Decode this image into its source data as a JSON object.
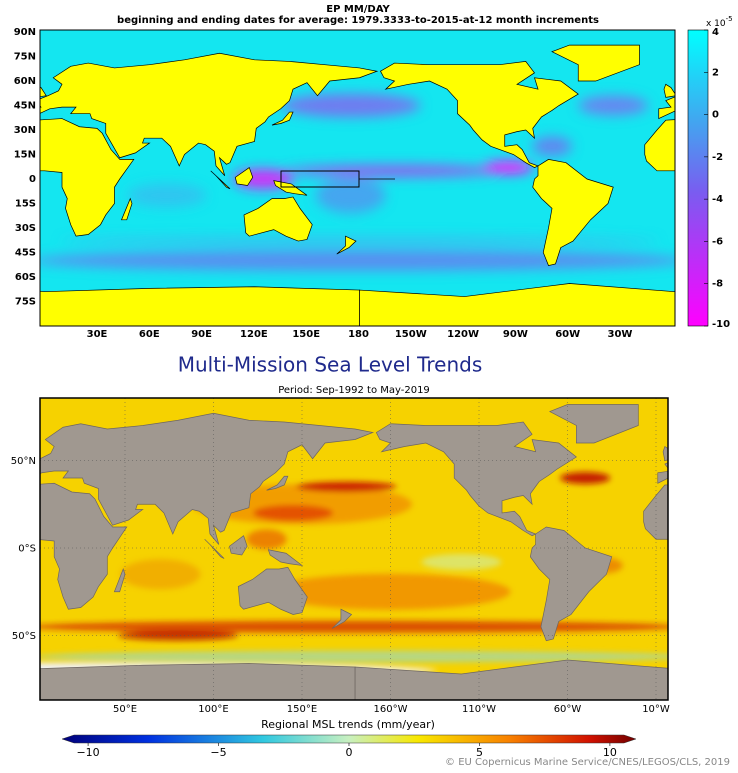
{
  "maps": [
    {
      "title": "EP MM/DAY",
      "subtitle": "beginning and ending dates for average:  1979.3333-to-2015-at-12 month increments",
      "y_labels": [
        "90N",
        "75N",
        "60N",
        "45N",
        "30N",
        "15N",
        "0",
        "15S",
        "30S",
        "45S",
        "60S",
        "75S"
      ],
      "x_labels": [
        "30E",
        "60E",
        "90E",
        "120E",
        "150E",
        "180",
        "150W",
        "120W",
        "90W",
        "60W",
        "30W"
      ],
      "colorbar": {
        "scale_label": "x 10",
        "scale_exponent": "-5",
        "clim": [
          -10,
          4
        ],
        "ticks": [
          4,
          2,
          0,
          -2,
          -4,
          -6,
          -8,
          -10
        ]
      }
    },
    {
      "title": "Multi-Mission Sea Level Trends",
      "subtitle": "Period: Sep-1992 to May-2019",
      "y_labels": [
        "50°N",
        "0°S",
        "50°S"
      ],
      "x_labels": [
        "50°E",
        "100°E",
        "150°E",
        "160°W",
        "110°W",
        "60°W",
        "10°W"
      ],
      "colorbar": {
        "label": "Regional MSL trends (mm/year)",
        "clim": [
          -11,
          11
        ],
        "ticks": [
          {
            "value": -10,
            "label": "−10"
          },
          {
            "value": -5,
            "label": "−5"
          },
          0,
          5,
          10
        ]
      },
      "credit": "© EU Copernicus Marine Service/CNES/LEGOS/CLS, 2019"
    }
  ]
}
